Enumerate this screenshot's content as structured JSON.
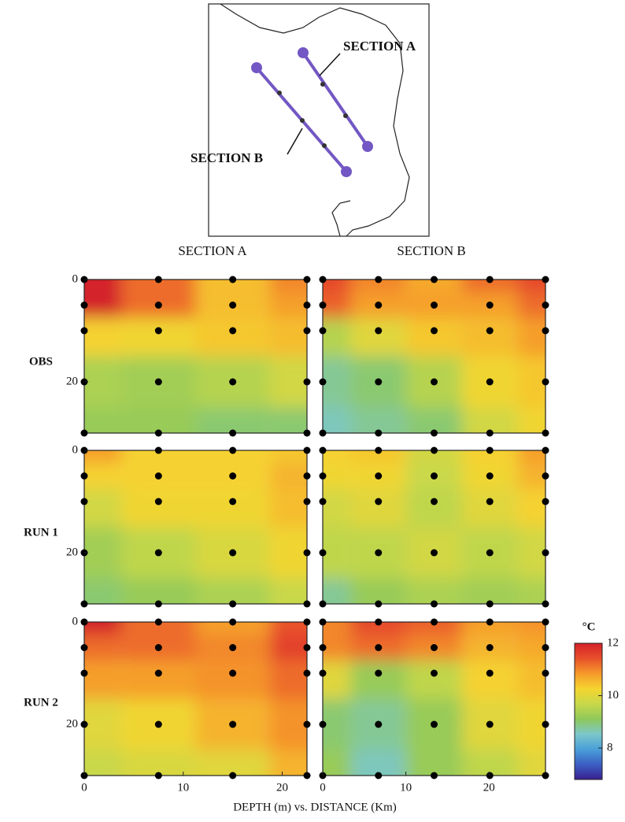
{
  "chart_data": {
    "type": "contour",
    "map_labels": [
      "SECTION A",
      "SECTION B"
    ],
    "columns": [
      "SECTION A",
      "SECTION B"
    ],
    "rows": [
      "OBS",
      "RUN 1",
      "RUN 2"
    ],
    "xlabel": "DEPTH (m) vs. DISTANCE (Km)",
    "depths": [
      0,
      5,
      10,
      20,
      30
    ],
    "ylim": [
      0,
      30
    ],
    "yticks": [
      0,
      20
    ],
    "sections": [
      {
        "distances": [
          0,
          7.5,
          15,
          22.5
        ],
        "xlim": [
          0,
          22.5
        ],
        "xticks": [
          0,
          10,
          20
        ]
      },
      {
        "distances": [
          0,
          6.7,
          13.4,
          20.1,
          26.8
        ],
        "xlim": [
          0,
          26.8
        ],
        "xticks": [
          0,
          10,
          20
        ]
      }
    ],
    "panels": [
      [
        [
          [
            12,
            11.2,
            10.5,
            11
          ],
          [
            12,
            11.2,
            10.5,
            10.8
          ],
          [
            10.3,
            10.2,
            10.4,
            10.5
          ],
          [
            9.4,
            9.3,
            9.5,
            9.8
          ],
          [
            9.2,
            9.2,
            9.0,
            9.0
          ]
        ],
        [
          [
            11.5,
            11,
            10.7,
            11.2,
            11.5
          ],
          [
            11.3,
            10.8,
            10.8,
            10.8,
            11.2
          ],
          [
            9.5,
            10,
            10.4,
            10.5,
            10.8
          ],
          [
            8.8,
            9.0,
            9.5,
            10.2,
            10.4
          ],
          [
            8.6,
            8.8,
            9.0,
            9.8,
            10.2
          ]
        ]
      ],
      [
        [
          [
            10.8,
            10.3,
            10.3,
            10.4
          ],
          [
            10.3,
            10.3,
            10.3,
            10.6
          ],
          [
            9.8,
            10.2,
            10.2,
            10.5
          ],
          [
            9.3,
            9.6,
            9.9,
            10.2
          ],
          [
            9.0,
            9.2,
            9.4,
            9.7
          ]
        ],
        [
          [
            10.3,
            10.4,
            9.8,
            10.3,
            10.8
          ],
          [
            10.2,
            10.2,
            9.7,
            10.2,
            10.6
          ],
          [
            9.8,
            10,
            9.6,
            10,
            10.3
          ],
          [
            9.6,
            9.6,
            9.8,
            9.6,
            9.8
          ],
          [
            8.8,
            9.2,
            9.4,
            9.3,
            9.4
          ]
        ]
      ],
      [
        [
          [
            12,
            11.2,
            10.8,
            11.4
          ],
          [
            11.2,
            11.2,
            11,
            11.6
          ],
          [
            10.8,
            10.8,
            10.9,
            11.2
          ],
          [
            10,
            10.2,
            10.6,
            10.9
          ],
          [
            9.7,
            9.9,
            10,
            10.6
          ]
        ],
        [
          [
            11,
            11.5,
            11.3,
            10.8,
            10.9
          ],
          [
            11,
            11.2,
            11,
            10.6,
            10.7
          ],
          [
            10,
            9.2,
            9.6,
            10.3,
            10.5
          ],
          [
            9,
            8.8,
            9.2,
            10,
            10.2
          ],
          [
            9.2,
            8.6,
            9.2,
            9.6,
            10
          ]
        ]
      ]
    ],
    "colorbar": {
      "unit": "°C",
      "lim": [
        6.8,
        12
      ],
      "ticks": [
        8,
        10,
        12
      ],
      "colormap": [
        "#3a1f8f",
        "#3b5fc4",
        "#4aa0d8",
        "#7cc7c9",
        "#8fc95a",
        "#c8d84a",
        "#f5d530",
        "#f59a2a",
        "#e8502a",
        "#d4202a"
      ]
    }
  }
}
